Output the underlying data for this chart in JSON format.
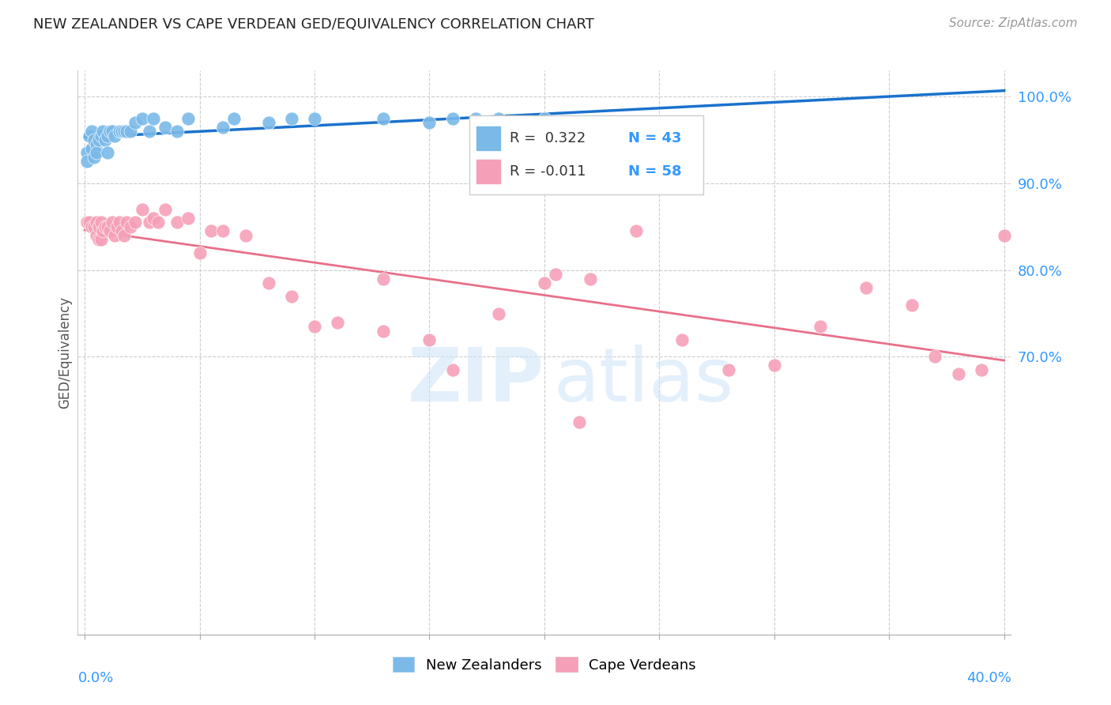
{
  "title": "NEW ZEALANDER VS CAPE VERDEAN GED/EQUIVALENCY CORRELATION CHART",
  "source": "Source: ZipAtlas.com",
  "ylabel": "GED/Equivalency",
  "ylim": [
    0.38,
    1.03
  ],
  "xlim": [
    -0.003,
    0.403
  ],
  "yticks": [
    0.7,
    0.8,
    0.9,
    1.0
  ],
  "ytick_labels": [
    "70.0%",
    "80.0%",
    "90.0%",
    "100.0%"
  ],
  "xtick_left_label": "0.0%",
  "xtick_right_label": "40.0%",
  "legend_R_nz": "R =  0.322",
  "legend_N_nz": "N = 43",
  "legend_R_cv": "R = -0.011",
  "legend_N_cv": "N = 58",
  "nz_color": "#7ab9e8",
  "cv_color": "#f5a0b8",
  "nz_line_color": "#1a72cc",
  "cv_line_color": "#e8708a",
  "watermark_zip": "ZIP",
  "watermark_atlas": "atlas",
  "nz_x": [
    0.001,
    0.001,
    0.002,
    0.003,
    0.003,
    0.004,
    0.004,
    0.005,
    0.005,
    0.006,
    0.007,
    0.008,
    0.009,
    0.01,
    0.01,
    0.011,
    0.012,
    0.013,
    0.015,
    0.016,
    0.017,
    0.018,
    0.02,
    0.022,
    0.025,
    0.028,
    0.03,
    0.035,
    0.04,
    0.045,
    0.06,
    0.065,
    0.08,
    0.09,
    0.1,
    0.13,
    0.15,
    0.16,
    0.17,
    0.18,
    0.19,
    0.2,
    0.22
  ],
  "nz_y": [
    0.935,
    0.925,
    0.955,
    0.96,
    0.94,
    0.95,
    0.93,
    0.945,
    0.935,
    0.95,
    0.955,
    0.96,
    0.95,
    0.955,
    0.935,
    0.96,
    0.96,
    0.955,
    0.96,
    0.96,
    0.96,
    0.96,
    0.96,
    0.97,
    0.975,
    0.96,
    0.975,
    0.965,
    0.96,
    0.975,
    0.965,
    0.975,
    0.97,
    0.975,
    0.975,
    0.975,
    0.97,
    0.975,
    0.975,
    0.975,
    0.97,
    0.975,
    0.97
  ],
  "cv_x": [
    0.001,
    0.002,
    0.003,
    0.004,
    0.005,
    0.005,
    0.006,
    0.006,
    0.007,
    0.007,
    0.008,
    0.009,
    0.01,
    0.011,
    0.012,
    0.013,
    0.014,
    0.015,
    0.016,
    0.017,
    0.018,
    0.02,
    0.022,
    0.025,
    0.028,
    0.03,
    0.032,
    0.035,
    0.04,
    0.045,
    0.05,
    0.055,
    0.06,
    0.07,
    0.08,
    0.09,
    0.1,
    0.11,
    0.13,
    0.15,
    0.16,
    0.18,
    0.2,
    0.22,
    0.24,
    0.26,
    0.28,
    0.3,
    0.32,
    0.34,
    0.36,
    0.37,
    0.38,
    0.39,
    0.4,
    0.205,
    0.13,
    0.215
  ],
  "cv_y": [
    0.855,
    0.855,
    0.85,
    0.85,
    0.855,
    0.84,
    0.85,
    0.835,
    0.855,
    0.835,
    0.845,
    0.85,
    0.85,
    0.845,
    0.855,
    0.84,
    0.85,
    0.855,
    0.845,
    0.84,
    0.855,
    0.85,
    0.855,
    0.87,
    0.855,
    0.86,
    0.855,
    0.87,
    0.855,
    0.86,
    0.82,
    0.845,
    0.845,
    0.84,
    0.785,
    0.77,
    0.735,
    0.74,
    0.73,
    0.72,
    0.685,
    0.75,
    0.785,
    0.79,
    0.845,
    0.72,
    0.685,
    0.69,
    0.735,
    0.78,
    0.76,
    0.7,
    0.68,
    0.685,
    0.84,
    0.795,
    0.79,
    0.625
  ]
}
